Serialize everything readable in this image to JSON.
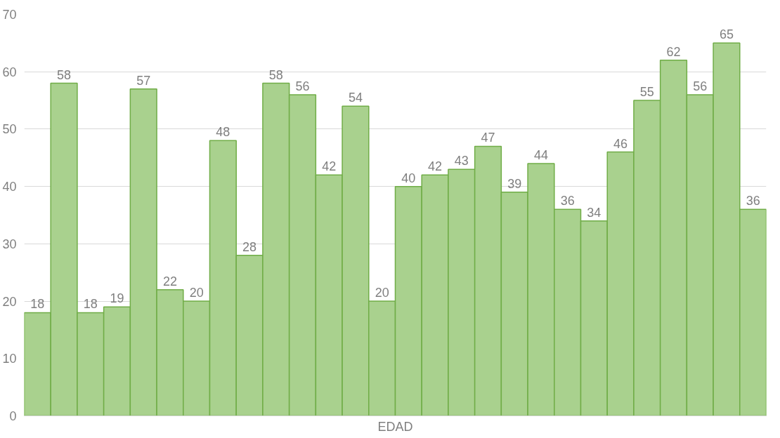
{
  "chart_data": {
    "type": "bar",
    "xlabel": "EDAD",
    "categories": [
      null,
      null,
      null,
      null,
      null,
      null,
      null,
      null,
      null,
      null,
      null,
      null,
      null,
      null,
      null,
      null,
      null,
      null,
      null,
      null,
      null,
      null,
      null,
      null,
      null,
      null,
      null,
      null
    ],
    "values": [
      18,
      58,
      18,
      19,
      57,
      22,
      20,
      48,
      28,
      58,
      56,
      42,
      54,
      20,
      40,
      42,
      43,
      47,
      39,
      44,
      36,
      34,
      46,
      55,
      62,
      56,
      65,
      36
    ],
    "color": "#a9d18e",
    "ylim": [
      0,
      70
    ],
    "yticks": [
      0,
      10,
      20,
      30,
      40,
      50,
      60,
      70
    ],
    "grid": "y",
    "data_labels": true,
    "tick_labels": "y"
  }
}
